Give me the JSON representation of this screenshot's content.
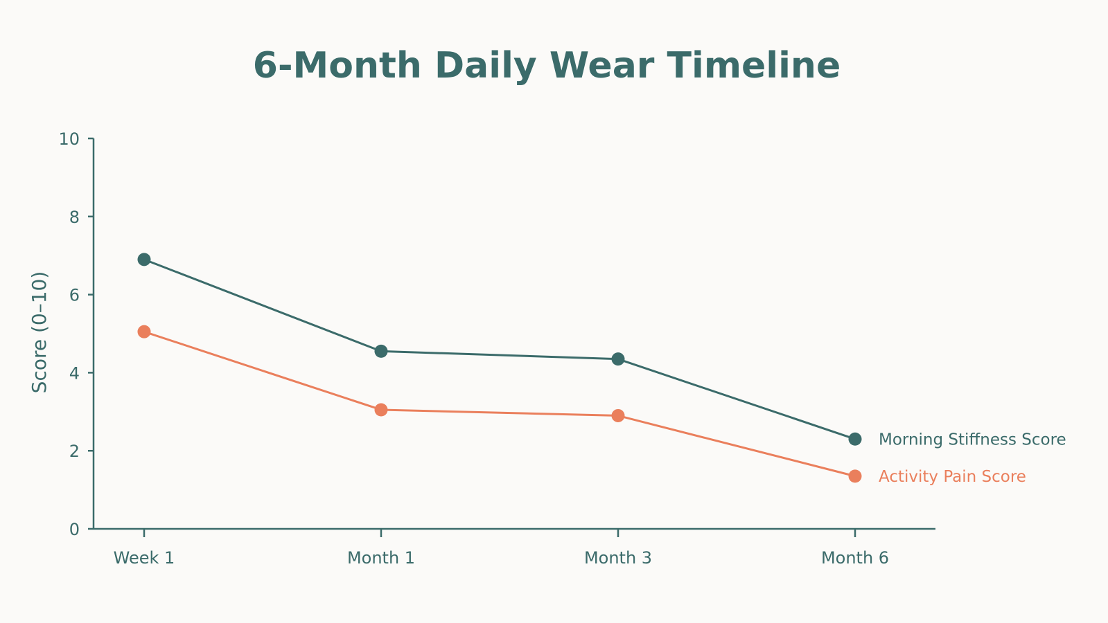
{
  "colors": {
    "background": "#fbfaf8",
    "title": "#3b6b6a",
    "axis": "#3b6b6a",
    "stiffness": "#3b6b6a",
    "pain": "#ea7f5c"
  },
  "chart_data": {
    "type": "line",
    "title": "6-Month Daily Wear Timeline",
    "xlabel": "",
    "ylabel": "Score (0–10)",
    "categories": [
      "Week 1",
      "Month 1",
      "Month 3",
      "Month 6"
    ],
    "ylim": [
      0,
      10
    ],
    "yticks": [
      0,
      2,
      4,
      6,
      8,
      10
    ],
    "grid": false,
    "legend_position": "right, inline at line ends",
    "series": [
      {
        "name": "Morning Stiffness Score",
        "color": "#3b6b6a",
        "values": [
          6.9,
          4.55,
          4.35,
          2.3
        ]
      },
      {
        "name": "Activity Pain Score",
        "color": "#ea7f5c",
        "values": [
          5.05,
          3.05,
          2.9,
          1.35
        ]
      }
    ]
  }
}
